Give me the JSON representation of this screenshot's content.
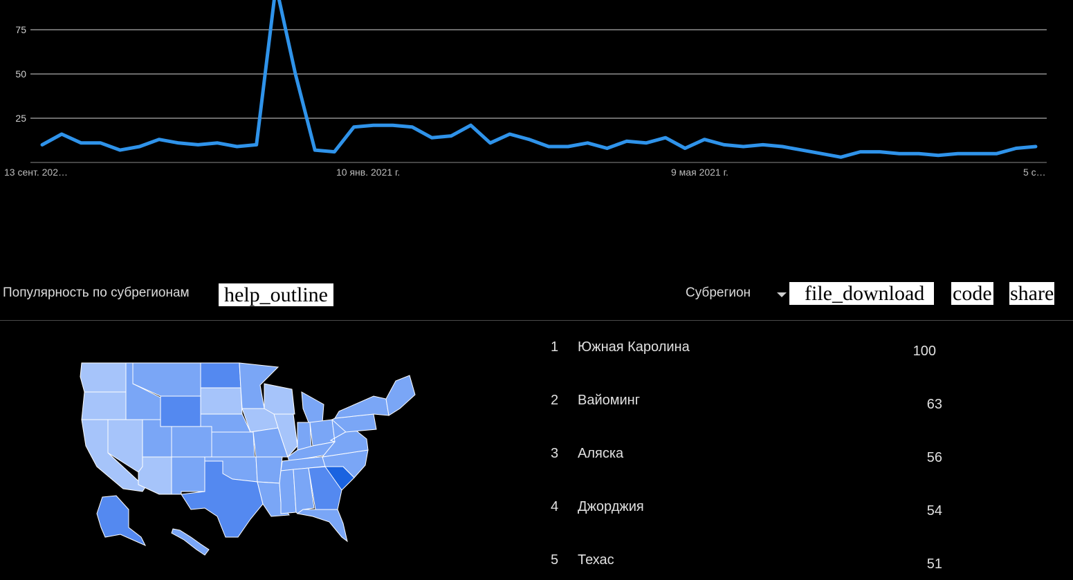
{
  "chart_data": {
    "type": "line",
    "y_ticks": [
      "25",
      "50",
      "75"
    ],
    "ylim": [
      0,
      100
    ],
    "x_labels": [
      "13 сент. 202…",
      "10 янв. 2021 г.",
      "9 мая 2021 г.",
      "5 с…"
    ],
    "grid": true,
    "line_color": "#2f93ea",
    "series": [
      {
        "values": [
          10,
          16,
          11,
          11,
          7,
          9,
          13,
          11,
          10,
          11,
          9,
          10,
          100,
          50,
          7,
          6,
          20,
          21,
          21,
          20,
          14,
          15,
          21,
          11,
          16,
          13,
          9,
          9,
          11,
          8,
          12,
          11,
          14,
          8,
          13,
          10,
          9,
          10,
          9,
          7,
          5,
          3,
          6,
          6,
          5,
          5,
          4,
          5,
          5,
          5,
          8,
          9
        ]
      }
    ]
  },
  "subregions": {
    "title": "Популярность по субрегионам",
    "help_icon": "help_outline",
    "selector_label": "Субрегион",
    "download_icon": "file_download",
    "embed_icon": "code",
    "share_icon": "share",
    "rows": [
      {
        "rank": "1",
        "name": "Южная Каролина",
        "value": "100"
      },
      {
        "rank": "2",
        "name": "Вайоминг",
        "value": "63"
      },
      {
        "rank": "3",
        "name": "Аляска",
        "value": "56"
      },
      {
        "rank": "4",
        "name": "Джорджия",
        "value": "54"
      },
      {
        "rank": "5",
        "name": "Техас",
        "value": "51"
      }
    ]
  },
  "map_colors": {
    "light": "#a6c4fa",
    "medium": "#7aa6f6",
    "dark": "#5489f0",
    "darkest": "#1a63e0"
  }
}
